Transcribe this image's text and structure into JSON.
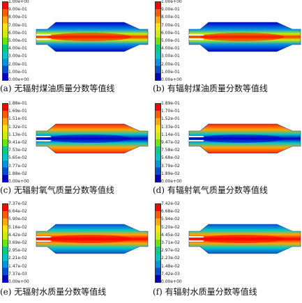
{
  "panels": [
    {
      "id": "a",
      "caption": "(a) 无辐射煤油质量分数等值线",
      "ticks": [
        "1.00e+00",
        "9.00e-01",
        "8.00e-01",
        "7.00e-01",
        "6.00e-01",
        "5.00e-01",
        "4.00e-01",
        "3.00e-01",
        "2.00e-01",
        "1.00e-01",
        "0.00e+00"
      ],
      "field": "kerosene"
    },
    {
      "id": "b",
      "caption": "(b) 有辐射煤油质量分数等值线",
      "ticks": [
        "1.00e+00",
        "9.00e-01",
        "8.00e-01",
        "7.00e-01",
        "6.00e-01",
        "5.00e-01",
        "4.00e-01",
        "3.00e-01",
        "2.00e-01",
        "1.00e-01",
        "0.00e+00"
      ],
      "field": "kerosene"
    },
    {
      "id": "c",
      "caption": "(c) 无辐射氧气质量分数等值线",
      "ticks": [
        "1.88e-01",
        "1.69e-01",
        "1.51e-01",
        "1.32e-01",
        "1.13e-01",
        "9.41e-02",
        "7.53e-02",
        "5.65e-02",
        "3.77e-02",
        "1.88e-02",
        "0.00e+00"
      ],
      "field": "oxygen"
    },
    {
      "id": "d",
      "caption": "(d) 有辐射氧气质量分数等值线",
      "ticks": [
        "1.89e-01",
        "1.70e-01",
        "1.52e-01",
        "1.33e-01",
        "1.14e-01",
        "9.47e-02",
        "7.58e-02",
        "5.68e-02",
        "3.79e-02",
        "1.89e-02",
        "0.00e+00"
      ],
      "field": "oxygen"
    },
    {
      "id": "e",
      "caption": "(e) 无辐射水质量分数等值线",
      "ticks": [
        "7.37e-02",
        "6.64e-02",
        "5.90e-02",
        "5.16e-02",
        "4.42e-02",
        "3.69e-02",
        "2.95e-02",
        "2.21e-02",
        "1.47e-02",
        "7.37e-03",
        "0.00e+00"
      ],
      "field": "water"
    },
    {
      "id": "f",
      "caption": "(f) 有辐射水质量分数等值线",
      "ticks": [
        "7.42e-02",
        "6.68e-02",
        "5.94e-02",
        "5.20e-02",
        "4.45e-02",
        "3.71e-02",
        "2.97e-02",
        "2.23e-02",
        "1.48e-02",
        "7.42e-03",
        "0.00e+00"
      ],
      "field": "water"
    }
  ],
  "colors": {
    "scale": [
      "#ff0000",
      "#ff5a00",
      "#ffa800",
      "#ffe600",
      "#c8f000",
      "#6ee600",
      "#00d27a",
      "#00c8c8",
      "#0096e6",
      "#0050d2",
      "#0000c8"
    ]
  }
}
